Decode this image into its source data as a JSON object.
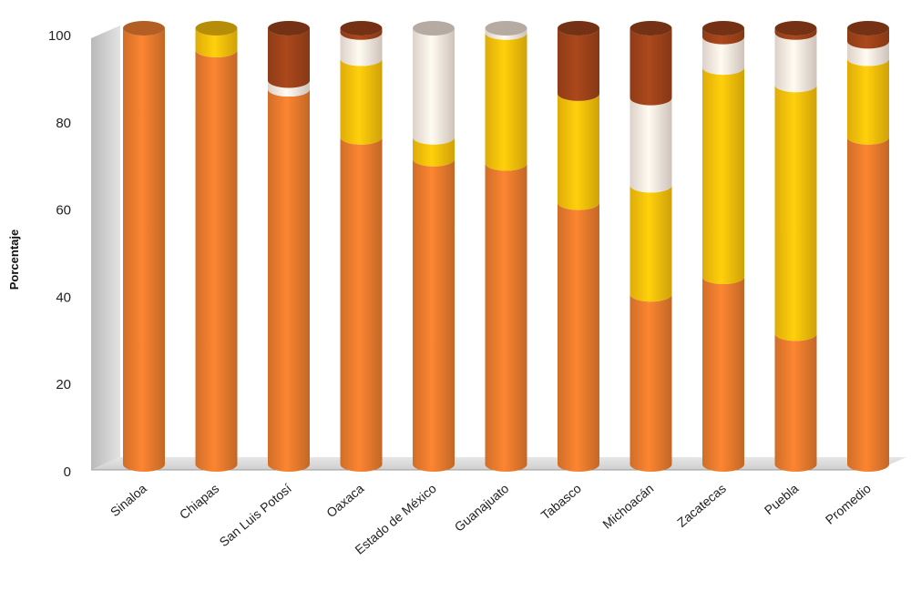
{
  "chart_data": {
    "type": "bar",
    "stacked": true,
    "three_d": true,
    "ylabel": "Porcentaje",
    "xlabel": "",
    "ylim": [
      0,
      100
    ],
    "yticks": [
      0,
      20,
      40,
      60,
      80,
      100
    ],
    "legend": "none",
    "categories": [
      "Sinaloa",
      "Chiapas",
      "San Luis Potosí",
      "Oaxaca",
      "Estado de México",
      "Guanajuato",
      "Tabasco",
      "Michoacán",
      "Zacatecas",
      "Puebla",
      "Promedio"
    ],
    "series": [
      {
        "color": "#ee7d2e",
        "values": [
          100,
          95,
          86,
          75,
          70,
          69,
          60,
          39,
          43,
          30,
          75
        ]
      },
      {
        "color": "#fcc40a",
        "values": [
          0,
          5,
          0,
          18,
          5,
          30,
          25,
          25,
          48,
          57,
          18
        ]
      },
      {
        "color": "#fbede3",
        "values": [
          0,
          0,
          2,
          6,
          25,
          1,
          0,
          20,
          7,
          12,
          4
        ]
      },
      {
        "color": "#a2441a",
        "values": [
          0,
          0,
          12,
          1,
          0,
          0,
          15,
          16,
          2,
          1,
          3
        ]
      }
    ]
  }
}
